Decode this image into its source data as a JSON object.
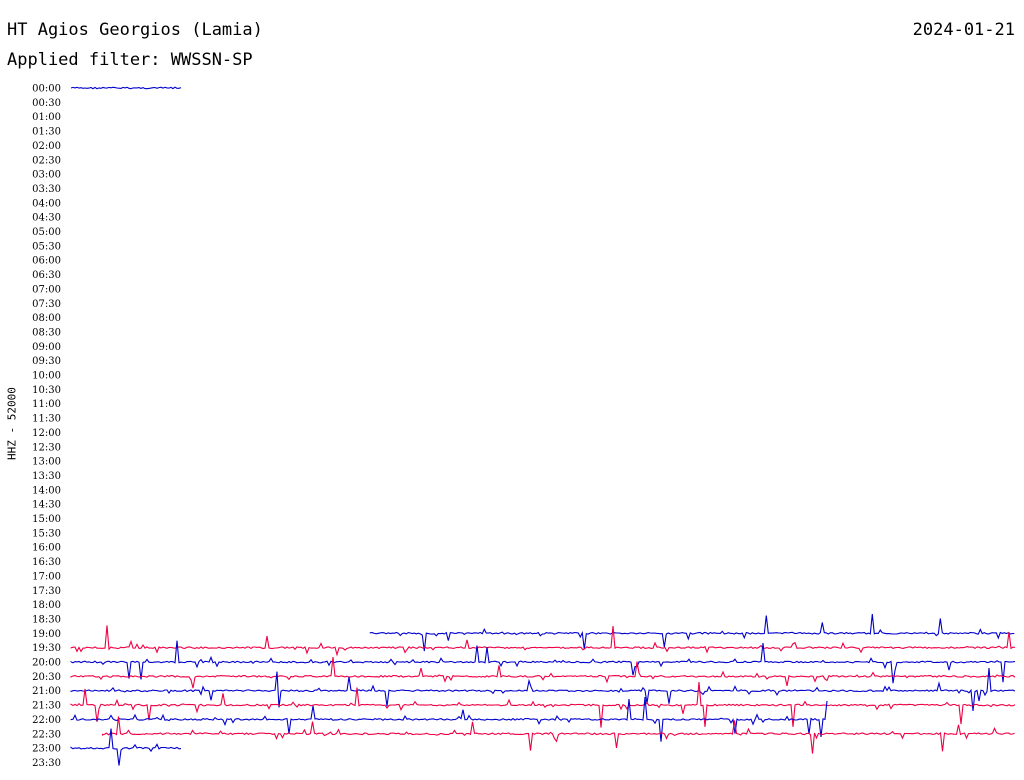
{
  "header": {
    "title": "HT Agios Georgios (Lamia)",
    "date": "2024-01-21",
    "filter": "Applied filter: WWSSN-SP"
  },
  "chart_data": {
    "type": "line",
    "title": "HT Agios Georgios (Lamia)",
    "ylabel": "HHZ - 52000",
    "time_labels": [
      "00:00",
      "00:30",
      "01:00",
      "01:30",
      "02:00",
      "02:30",
      "03:00",
      "03:30",
      "04:00",
      "04:30",
      "05:00",
      "05:30",
      "06:00",
      "06:30",
      "07:00",
      "07:30",
      "08:00",
      "08:30",
      "09:00",
      "09:30",
      "10:00",
      "10:30",
      "11:00",
      "11:30",
      "12:00",
      "12:30",
      "13:00",
      "13:30",
      "14:00",
      "14:30",
      "15:00",
      "15:30",
      "16:00",
      "16:30",
      "17:00",
      "17:30",
      "18:00",
      "18:30",
      "19:00",
      "19:30",
      "20:00",
      "20:30",
      "21:00",
      "21:30",
      "22:00",
      "22:30",
      "23:00",
      "23:30"
    ],
    "row_minutes": 30,
    "trace_colors": [
      "#0000cc",
      "#ee0044"
    ],
    "traces": [
      {
        "row": "00:00",
        "start_minute": 0,
        "end_minute": 3.5
      },
      {
        "row": "19:00",
        "start_minute": 9.5,
        "end_minute": 30
      },
      {
        "row": "19:30",
        "start_minute": 0,
        "end_minute": 30
      },
      {
        "row": "20:00",
        "start_minute": 0,
        "end_minute": 30
      },
      {
        "row": "20:30",
        "start_minute": 0,
        "end_minute": 30
      },
      {
        "row": "21:00",
        "start_minute": 0,
        "end_minute": 30
      },
      {
        "row": "21:30",
        "start_minute": 0,
        "end_minute": 30
      },
      {
        "row": "22:00",
        "start_minute": 0,
        "end_minute": 24
      },
      {
        "row": "22:30",
        "start_minute": 1,
        "end_minute": 30
      },
      {
        "row": "23:00",
        "start_minute": 0,
        "end_minute": 3.5
      }
    ]
  }
}
